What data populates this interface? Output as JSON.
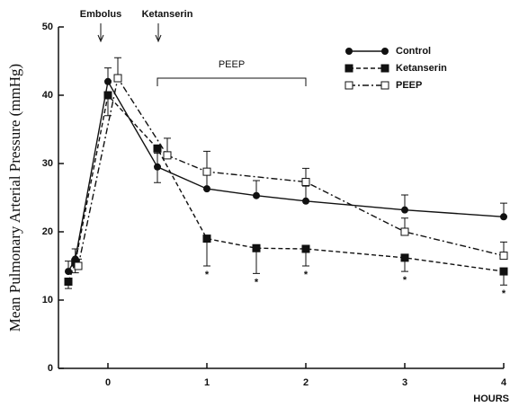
{
  "chart_data": {
    "type": "line",
    "ylabel": "Mean Pulmonary Arterial Pressure (mmHg)",
    "xlabel": "HOURS",
    "xlim": [
      -0.5,
      4
    ],
    "xticks": [
      0,
      1,
      2,
      3,
      4
    ],
    "ylim": [
      0,
      50
    ],
    "yticks": [
      0,
      10,
      20,
      30,
      40,
      50
    ],
    "annotations": [
      "Embolus",
      "Ketanserin",
      "PEEP"
    ],
    "significance": "*",
    "series": [
      {
        "name": "Control",
        "color": "#111",
        "dash": "solid",
        "marker": "circle",
        "x": [
          -0.4,
          -0.33,
          0,
          0.5,
          1,
          1.5,
          2,
          3,
          4
        ],
        "values": [
          14.2,
          16,
          42,
          29.5,
          26.3,
          25.3,
          24.5,
          23.2,
          22.2
        ],
        "errors": [
          1.5,
          1.5,
          2,
          2,
          2.2,
          2.2,
          2.2,
          2.2,
          2
        ]
      },
      {
        "name": "Ketanserin",
        "color": "#111",
        "dash": "dashed",
        "marker": "filled-square",
        "x": [
          -0.4,
          -0.33,
          0,
          0.5,
          1,
          1.5,
          2,
          3,
          4
        ],
        "values": [
          12.7,
          15.5,
          40,
          32.2,
          19,
          17.6,
          17.5,
          16.2,
          14.2
        ],
        "errors": [
          1,
          1.5,
          3,
          5,
          4,
          3.7,
          2.5,
          2,
          2
        ]
      },
      {
        "name": "PEEP",
        "color": "#111",
        "dash": "dashdot",
        "marker": "open-square",
        "x": [
          -0.3,
          0.1,
          0.6,
          1,
          2,
          3,
          4
        ],
        "values": [
          15,
          42.5,
          31.2,
          28.8,
          27.3,
          20,
          16.5
        ],
        "errors": [
          1,
          3,
          2.5,
          3,
          2,
          2,
          2
        ]
      }
    ]
  }
}
